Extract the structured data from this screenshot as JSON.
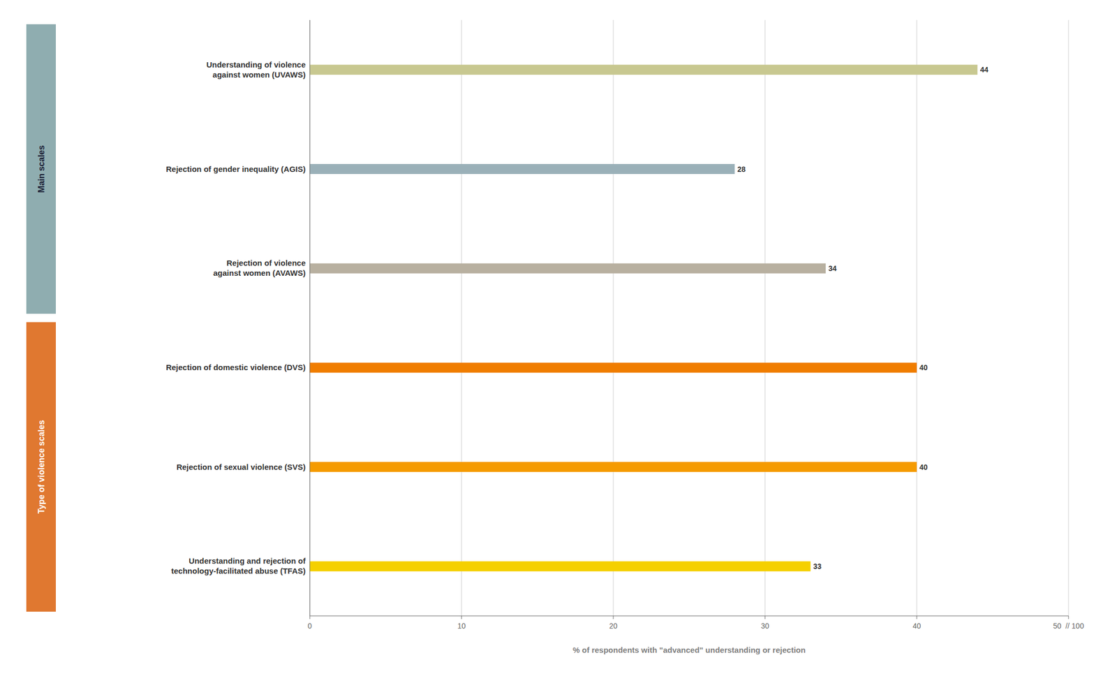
{
  "chart_data": {
    "type": "bar",
    "orientation": "horizontal",
    "categories": [
      "Understanding and rejection of\ntechnology-facilitated abuse (TFAS)",
      "Rejection of sexual violence (SVS)",
      "Rejection of domestic violence (DVS)",
      "Rejection of violence\nagainst women (AVAWS)",
      "Rejection of gender inequality (AGIS)",
      "Understanding of violence\nagainst women (UVAWS)"
    ],
    "values": [
      33,
      40,
      40,
      34,
      28,
      44
    ],
    "colors": [
      "#f5d000",
      "#f59b00",
      "#f07d00",
      "#b8b0a0",
      "#9ab0b8",
      "#c8c890"
    ],
    "data_labels": true,
    "xlabel": "% of respondents with \"advanced\" understanding or rejection",
    "xlim": [
      0,
      50
    ],
    "xticks": [
      0,
      10,
      20,
      30,
      40,
      {
        "value": 50,
        "label": "50  // 100"
      }
    ],
    "grid": true,
    "annotations": [
      {
        "text": "Main scales",
        "color": "#8fadb0",
        "categories": [
          "Rejection of violence\nagainst women (AVAWS)",
          "Rejection of gender inequality (AGIS)",
          "Understanding of violence\nagainst women (UVAWS)"
        ]
      },
      {
        "text": "Type of violence scales",
        "color": "#e07830",
        "categories": [
          "Understanding and rejection of\ntechnology-facilitated abuse (TFAS)",
          "Rejection of sexual violence (SVS)",
          "Rejection of domestic violence (DVS)"
        ]
      }
    ]
  }
}
